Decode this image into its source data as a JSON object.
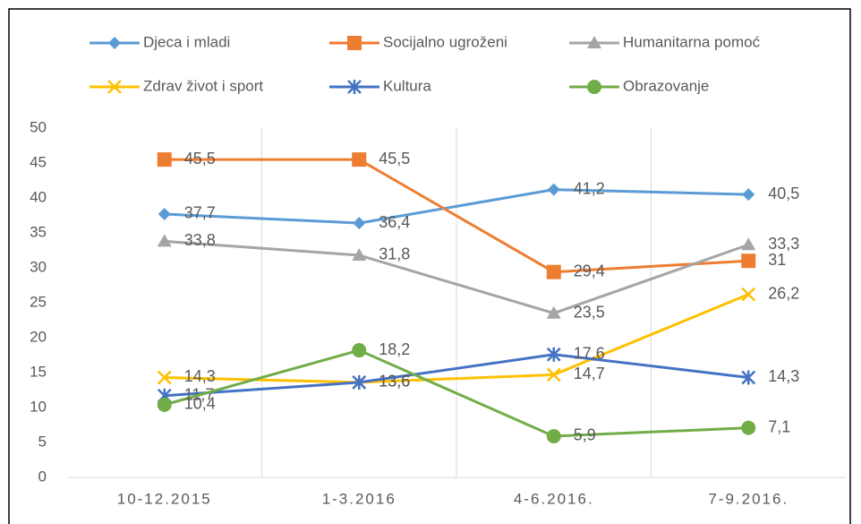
{
  "chart_data": {
    "type": "line",
    "categories": [
      "10-12.2015",
      "1-3.2016",
      "4-6.2016.",
      "7-9.2016."
    ],
    "series": [
      {
        "name": "Djeca i mladi",
        "color": "#5b9bd5",
        "marker": "diamond",
        "values": [
          37.7,
          36.4,
          41.2,
          40.5
        ],
        "value_labels": [
          "37,7",
          "36,4",
          "41,2",
          "40,5"
        ]
      },
      {
        "name": "Socijalno ugroženi",
        "color": "#ed7d31",
        "marker": "square",
        "values": [
          45.5,
          45.5,
          29.4,
          31
        ],
        "value_labels": [
          "45,5",
          "45,5",
          "29,4",
          "31"
        ]
      },
      {
        "name": "Humanitarna pomoć",
        "color": "#a5a5a5",
        "marker": "triangle",
        "values": [
          33.8,
          31.8,
          23.5,
          33.3
        ],
        "value_labels": [
          "33,8",
          "31,8",
          "23,5",
          "33,3"
        ]
      },
      {
        "name": "Zdrav život i sport",
        "color": "#ffc000",
        "marker": "x",
        "values": [
          14.3,
          13.6,
          14.7,
          26.2
        ],
        "value_labels": [
          "14,3",
          "13,6",
          "14,7",
          "26,2"
        ]
      },
      {
        "name": "Kultura",
        "color": "#4472c4",
        "marker": "star",
        "values": [
          11.7,
          13.6,
          17.6,
          14.3
        ],
        "value_labels": [
          "11,7",
          "13,6",
          "17,6",
          "14,3"
        ]
      },
      {
        "name": "Obrazovanje",
        "color": "#70ad47",
        "marker": "circle",
        "values": [
          10.4,
          18.2,
          5.9,
          7.1
        ],
        "value_labels": [
          "10,4",
          "18,2",
          "5,9",
          "7,1"
        ]
      }
    ],
    "ylim": [
      0,
      50
    ],
    "yticks": [
      0,
      5,
      10,
      15,
      20,
      25,
      30,
      35,
      40,
      45,
      50
    ],
    "grid": "vertical",
    "legend": "top"
  }
}
